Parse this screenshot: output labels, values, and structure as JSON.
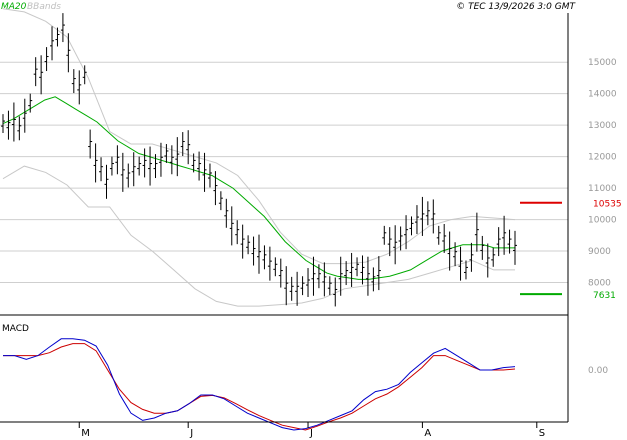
{
  "header": {
    "ma_label": "MA20",
    "bbands_label": "BBands",
    "copyright": "© TEC 13/9/2026 3:0 GMT",
    "macd_label": "MACD"
  },
  "colors": {
    "ma": "#00aa00",
    "bbands": "#c8c8c8",
    "price": "#000000",
    "resistance": "#dd0000",
    "support": "#00aa00",
    "macd": "#0000cc",
    "signal": "#cc0000",
    "grid": "#cfcfcf",
    "axis_label": "#999999"
  },
  "chart_data": [
    {
      "type": "line",
      "title": "",
      "y_ticks": [
        "8000",
        "9000",
        "10000",
        "11000",
        "12000",
        "13000",
        "14000",
        "15000"
      ],
      "ylim": [
        7000,
        16500
      ],
      "x_ticks": [
        {
          "label": "M",
          "bar": 14
        },
        {
          "label": "J",
          "bar": 34
        },
        {
          "label": "J",
          "bar": 56
        },
        {
          "label": "A",
          "bar": 77
        },
        {
          "label": "S",
          "bar": 98
        }
      ],
      "levels": [
        {
          "name": "resistance",
          "label": "10535",
          "value": 10535
        },
        {
          "name": "support",
          "label": "7631",
          "value": 7631
        }
      ],
      "price": [
        13050,
        13000,
        13100,
        12900,
        13300,
        13700,
        14700,
        14600,
        15100,
        15600,
        15800,
        16100,
        15300,
        14400,
        14200,
        14600,
        12400,
        11800,
        11600,
        11200,
        11700,
        11900,
        11500,
        11400,
        11600,
        11700,
        11800,
        11700,
        11700,
        11900,
        12100,
        11900,
        12000,
        12400,
        12300,
        11800,
        11700,
        11500,
        11400,
        11000,
        10600,
        10200,
        9800,
        9600,
        9300,
        9200,
        9000,
        8900,
        8800,
        8600,
        8500,
        8300,
        7900,
        7800,
        7800,
        7900,
        8000,
        8200,
        8200,
        8100,
        7900,
        7700,
        8200,
        8300,
        8400,
        8500,
        8400,
        8200,
        8100,
        8300,
        9500,
        9300,
        9200,
        9400,
        9600,
        9800,
        10000,
        10100,
        10200,
        10100,
        9500,
        9400,
        9000,
        8900,
        8600,
        8400,
        8800,
        9600,
        9100,
        8700,
        8800,
        9300,
        9500,
        9300,
        9100
      ],
      "ma20": [
        13050,
        13200,
        13400,
        13600,
        13800,
        13900,
        13700,
        13500,
        13300,
        13100,
        12800,
        12500,
        12300,
        12100,
        12000,
        11900,
        11800,
        11700,
        11600,
        11500,
        11400,
        11200,
        11000,
        10700,
        10400,
        10100,
        9700,
        9300,
        9000,
        8700,
        8500,
        8300,
        8200,
        8150,
        8100,
        8100,
        8150,
        8200,
        8300,
        8400,
        8600,
        8800,
        9000,
        9100,
        9200,
        9200,
        9200,
        9100,
        9100,
        9100
      ],
      "bb_upper": [
        16700,
        16600,
        16300,
        15800,
        14500,
        12800,
        12400,
        12400,
        12200,
        12000,
        11800,
        11400,
        10600,
        9600,
        8900,
        8600,
        8600,
        8650,
        8900,
        9300,
        9800,
        10000,
        10100,
        10050,
        10000
      ],
      "bb_lower": [
        11300,
        11700,
        11500,
        11100,
        10400,
        10400,
        9500,
        9000,
        8400,
        7800,
        7400,
        7250,
        7250,
        7300,
        7350,
        7500,
        7800,
        7900,
        8000,
        8100,
        8300,
        8500,
        8700,
        8400,
        8400
      ]
    },
    {
      "type": "line",
      "title": "",
      "y_ticks": [
        "0.00"
      ],
      "ylim": [
        -100,
        100
      ],
      "macd": [
        30,
        30,
        22,
        30,
        48,
        65,
        65,
        62,
        50,
        10,
        -50,
        -90,
        -105,
        -100,
        -90,
        -85,
        -70,
        -52,
        -52,
        -60,
        -75,
        -90,
        -100,
        -110,
        -120,
        -125,
        -122,
        -115,
        -105,
        -95,
        -85,
        -62,
        -45,
        -40,
        -30,
        -5,
        15,
        35,
        45,
        30,
        15,
        0,
        0,
        5,
        7
      ],
      "signal": [
        30,
        30,
        30,
        30,
        36,
        48,
        55,
        55,
        40,
        0,
        -40,
        -68,
        -82,
        -90,
        -90,
        -85,
        -70,
        -55,
        -53,
        -58,
        -70,
        -83,
        -95,
        -105,
        -115,
        -120,
        -125,
        -117,
        -108,
        -100,
        -90,
        -75,
        -60,
        -50,
        -35,
        -15,
        5,
        30,
        30,
        20,
        10,
        0,
        0,
        0,
        2
      ]
    }
  ]
}
